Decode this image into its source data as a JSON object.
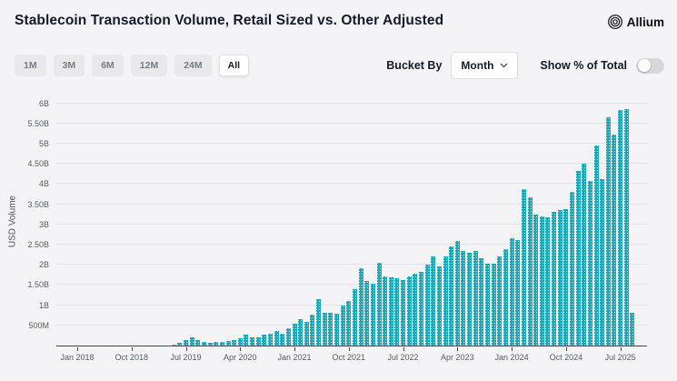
{
  "header": {
    "title": "Stablecoin Transaction Volume, Retail Sized vs. Other Adjusted",
    "brand": "Allium"
  },
  "controls": {
    "ranges": [
      "1M",
      "3M",
      "6M",
      "12M",
      "24M",
      "All"
    ],
    "selected_range": "All",
    "bucket_by_label": "Bucket By",
    "bucket_value": "Month",
    "toggle_label": "Show % of Total",
    "toggle_on": false
  },
  "chart_data": {
    "type": "bar",
    "title": "Stablecoin Transaction Volume, Retail Sized vs. Other Adjusted",
    "ylabel": "USD Volume",
    "unit": "USD billions",
    "bucket": "Month",
    "start_month": "Jan 2018",
    "end_month": "Sep 2025",
    "ylim_billions": [
      0,
      6
    ],
    "grid": true,
    "bar_color": "#1aa9ba",
    "y_tick_labels": [
      "500M",
      "1B",
      "1.50B",
      "2B",
      "2.50B",
      "3B",
      "3.50B",
      "4B",
      "4.50B",
      "5B",
      "5.50B",
      "6B"
    ],
    "x_ticks": [
      {
        "month_index": 0,
        "label": "Jan 2018"
      },
      {
        "month_index": 9,
        "label": "Oct 2018"
      },
      {
        "month_index": 18,
        "label": "Jul 2019"
      },
      {
        "month_index": 27,
        "label": "Apr 2020"
      },
      {
        "month_index": 36,
        "label": "Jan 2021"
      },
      {
        "month_index": 45,
        "label": "Oct 2021"
      },
      {
        "month_index": 54,
        "label": "Jul 2022"
      },
      {
        "month_index": 63,
        "label": "Apr 2023"
      },
      {
        "month_index": 72,
        "label": "Jan 2024"
      },
      {
        "month_index": 81,
        "label": "Oct 2024"
      },
      {
        "month_index": 90,
        "label": "Jul 2025"
      }
    ],
    "values_billions": [
      0,
      0,
      0,
      0,
      0,
      0,
      0,
      0,
      0,
      0,
      0,
      0,
      0,
      0,
      0,
      0,
      0.02,
      0.06,
      0.13,
      0.2,
      0.14,
      0.08,
      0.07,
      0.08,
      0.09,
      0.12,
      0.14,
      0.19,
      0.26,
      0.2,
      0.2,
      0.26,
      0.3,
      0.35,
      0.3,
      0.43,
      0.54,
      0.65,
      0.58,
      0.77,
      1.15,
      0.81,
      0.81,
      0.78,
      0.98,
      1.11,
      1.39,
      1.92,
      1.6,
      1.54,
      2.05,
      1.71,
      1.69,
      1.67,
      1.62,
      1.71,
      1.79,
      1.82,
      2.01,
      2.2,
      1.95,
      2.21,
      2.45,
      2.59,
      2.34,
      2.29,
      2.34,
      2.16,
      2.03,
      2.03,
      2.21,
      2.39,
      2.65,
      2.61,
      3.87,
      3.68,
      3.25,
      3.19,
      3.17,
      3.3,
      3.35,
      3.38,
      3.81,
      4.33,
      4.5,
      4.08,
      4.95,
      4.13,
      5.66,
      5.23,
      5.83,
      5.86,
      0.8
    ]
  }
}
